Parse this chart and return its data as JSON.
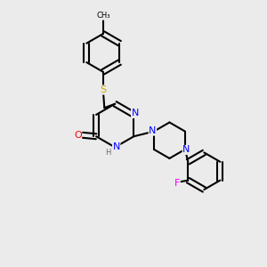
{
  "bg_color": "#ebebeb",
  "bond_color": "#000000",
  "bond_width": 1.5,
  "atom_colors": {
    "N": "#0000ff",
    "O": "#ff0000",
    "S": "#ccaa00",
    "F": "#ee00ee",
    "C": "#000000",
    "H": "#666666"
  },
  "title": ""
}
